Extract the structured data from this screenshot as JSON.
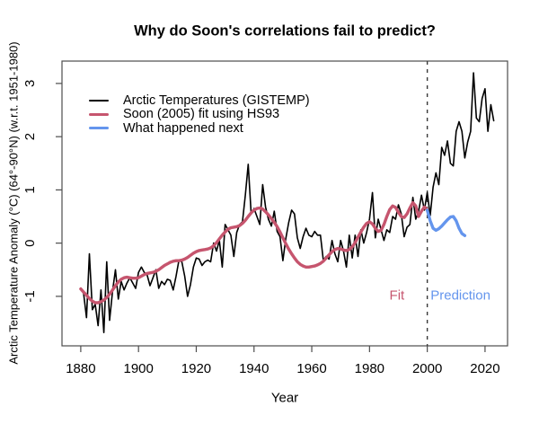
{
  "figure": {
    "title": "Why do Soon's correlations fail to predict?"
  },
  "chart_data": {
    "type": "line",
    "title": "Why do Soon's correlations fail to predict?",
    "xlabel": "Year",
    "ylabel": "Arctic Temperature Anomaly (°C) (64°-90°N) (w.r.t. 1951-1980)",
    "xlim": [
      1873.5,
      2027.8
    ],
    "ylim": [
      -1.93,
      3.42
    ],
    "xticks": [
      1880,
      1900,
      1920,
      1940,
      1960,
      1980,
      2000,
      2020
    ],
    "yticks": [
      -1,
      0,
      1,
      2,
      3
    ],
    "grid": false,
    "legend_position": "top-left",
    "frame_color": "#4d4d4d",
    "vline": {
      "x": 2000,
      "style": "dashed",
      "color": "#3a3a3a"
    },
    "annotations": [
      {
        "text": "Fit",
        "x": 1989.5,
        "y": -0.99,
        "color": "#c6556e"
      },
      {
        "text": "Prediction",
        "x": 2011.5,
        "y": -0.99,
        "color": "#6495ed"
      }
    ],
    "series": [
      {
        "name": "Arctic Temperatures (GISTEMP)",
        "color": "#000000",
        "line_width": 1.6,
        "x_start": 1880,
        "x_step": 1,
        "values": [
          -0.85,
          -0.95,
          -1.4,
          -0.2,
          -1.25,
          -1.15,
          -1.55,
          -0.88,
          -1.68,
          -0.35,
          -1.45,
          -0.9,
          -0.5,
          -1.05,
          -0.72,
          -0.88,
          -0.75,
          -0.65,
          -0.75,
          -0.85,
          -0.55,
          -0.45,
          -0.55,
          -0.6,
          -0.8,
          -0.65,
          -0.5,
          -0.85,
          -0.72,
          -0.78,
          -0.68,
          -0.7,
          -0.88,
          -0.62,
          -0.32,
          -0.35,
          -0.62,
          -1.0,
          -0.78,
          -0.45,
          -0.28,
          -0.3,
          -0.42,
          -0.35,
          -0.32,
          -0.35,
          0.0,
          -0.15,
          0.05,
          -0.45,
          0.35,
          0.25,
          0.15,
          -0.25,
          0.2,
          0.35,
          0.4,
          0.9,
          1.48,
          0.55,
          0.65,
          0.5,
          0.35,
          1.1,
          0.68,
          0.45,
          0.32,
          0.6,
          0.22,
          0.12,
          -0.33,
          0.08,
          0.38,
          0.62,
          0.55,
          0.1,
          -0.1,
          0.12,
          0.28,
          0.15,
          0.12,
          0.22,
          0.15,
          0.15,
          -0.32,
          -0.25,
          -0.3,
          0.05,
          -0.2,
          -0.35,
          0.05,
          -0.15,
          -0.45,
          0.15,
          -0.28,
          0.15,
          -0.25,
          0.25,
          0.0,
          0.2,
          0.45,
          0.95,
          0.1,
          0.45,
          0.25,
          0.05,
          0.25,
          0.2,
          0.5,
          0.45,
          0.72,
          0.55,
          0.12,
          0.3,
          0.35,
          0.86,
          0.45,
          0.6,
          0.9,
          0.62,
          0.95,
          0.52,
          1.05,
          1.32,
          1.1,
          1.8,
          1.65,
          1.92,
          1.5,
          1.45,
          2.1,
          2.28,
          2.1,
          1.6,
          1.9,
          2.1,
          3.2,
          2.35,
          2.28,
          2.72,
          2.9,
          2.1,
          2.6,
          2.3
        ]
      },
      {
        "name": "Soon (2005) fit using HS93",
        "color": "#c6556e",
        "line_width": 3.4,
        "x_start": 1880,
        "x_step": 1,
        "values": [
          -0.86,
          -0.92,
          -0.98,
          -1.04,
          -1.09,
          -1.12,
          -1.12,
          -1.1,
          -1.07,
          -1.02,
          -0.96,
          -0.88,
          -0.8,
          -0.73,
          -0.68,
          -0.65,
          -0.64,
          -0.65,
          -0.66,
          -0.66,
          -0.65,
          -0.62,
          -0.59,
          -0.57,
          -0.56,
          -0.55,
          -0.53,
          -0.5,
          -0.46,
          -0.42,
          -0.39,
          -0.36,
          -0.34,
          -0.33,
          -0.33,
          -0.32,
          -0.3,
          -0.27,
          -0.23,
          -0.19,
          -0.16,
          -0.14,
          -0.13,
          -0.12,
          -0.11,
          -0.09,
          -0.05,
          0.01,
          0.08,
          0.15,
          0.21,
          0.26,
          0.29,
          0.3,
          0.31,
          0.33,
          0.37,
          0.43,
          0.5,
          0.57,
          0.62,
          0.65,
          0.66,
          0.64,
          0.59,
          0.53,
          0.46,
          0.39,
          0.31,
          0.21,
          0.1,
          -0.01,
          -0.11,
          -0.2,
          -0.28,
          -0.35,
          -0.4,
          -0.43,
          -0.45,
          -0.45,
          -0.44,
          -0.43,
          -0.41,
          -0.38,
          -0.34,
          -0.28,
          -0.22,
          -0.16,
          -0.12,
          -0.1,
          -0.11,
          -0.13,
          -0.14,
          -0.12,
          -0.07,
          0.01,
          0.11,
          0.21,
          0.3,
          0.37,
          0.4,
          0.36,
          0.28,
          0.22,
          0.24,
          0.35,
          0.5,
          0.63,
          0.7,
          0.67,
          0.58,
          0.5,
          0.48,
          0.55,
          0.66,
          0.76,
          0.7,
          0.5,
          0.6,
          0.68,
          0.63
        ]
      },
      {
        "name": "What happened next",
        "color": "#6495ed",
        "line_width": 3.4,
        "x_start": 2000,
        "x_step": 1,
        "values": [
          0.62,
          0.42,
          0.28,
          0.24,
          0.27,
          0.32,
          0.38,
          0.44,
          0.49,
          0.5,
          0.42,
          0.28,
          0.18,
          0.14
        ]
      }
    ]
  }
}
